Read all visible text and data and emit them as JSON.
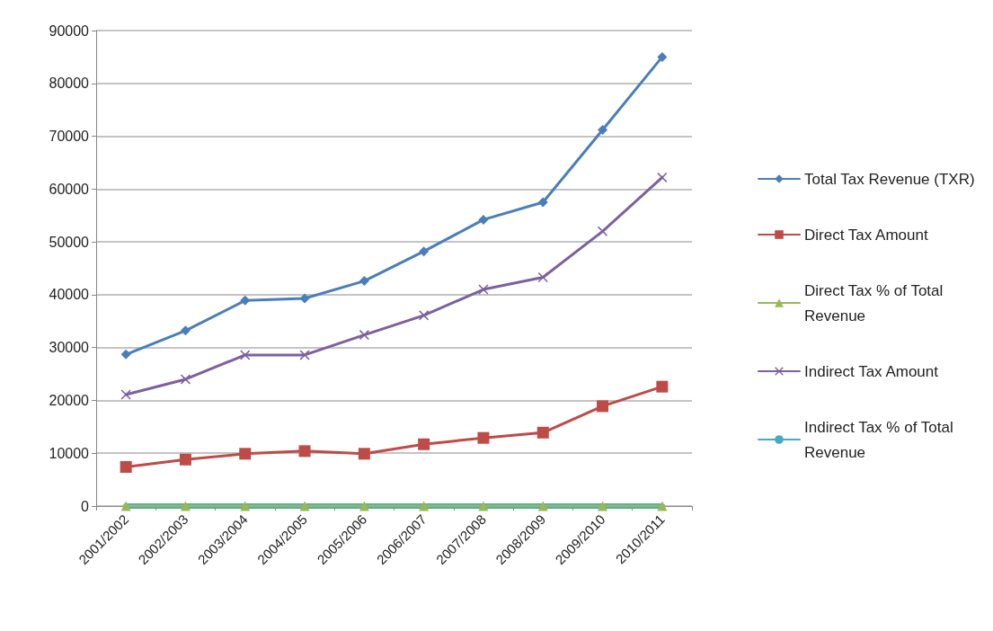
{
  "chart_data": {
    "type": "line",
    "categories": [
      "2001/2002",
      "2002/2003",
      "2003/2004",
      "2004/2005",
      "2005/2006",
      "2006/2007",
      "2007/2008",
      "2008/2009",
      "2009/2010",
      "2010/2011"
    ],
    "series": [
      {
        "name": "Total Tax Revenue (TXR)",
        "color": "#4a7ebb",
        "marker": "diamond",
        "values": [
          28700,
          33200,
          38900,
          39300,
          42600,
          48200,
          54200,
          57500,
          71200,
          85000
        ]
      },
      {
        "name": "Direct Tax Amount",
        "color": "#be4b48",
        "marker": "square",
        "values": [
          7400,
          8800,
          9900,
          10400,
          9900,
          11700,
          12900,
          13900,
          18900,
          22600
        ]
      },
      {
        "name": "Direct Tax % of Total Revenue",
        "color": "#98b954",
        "marker": "triangle",
        "values": [
          0,
          0,
          0,
          0,
          0,
          0,
          0,
          0,
          0,
          0
        ]
      },
      {
        "name": "Indirect Tax Amount",
        "color": "#7d60a0",
        "marker": "cross",
        "values": [
          21100,
          24000,
          28600,
          28600,
          32400,
          36100,
          41000,
          43300,
          52000,
          62200
        ]
      },
      {
        "name": "Indirect Tax % of Total Revenue",
        "color": "#46aac5",
        "marker": "none",
        "values": [
          0,
          0,
          0,
          0,
          0,
          0,
          0,
          0,
          0,
          0
        ]
      }
    ],
    "ylim": [
      0,
      90000
    ],
    "yticks": [
      0,
      10000,
      20000,
      30000,
      40000,
      50000,
      60000,
      70000,
      80000,
      90000
    ],
    "grid": "y",
    "legend": "right",
    "line_style": "solid"
  }
}
